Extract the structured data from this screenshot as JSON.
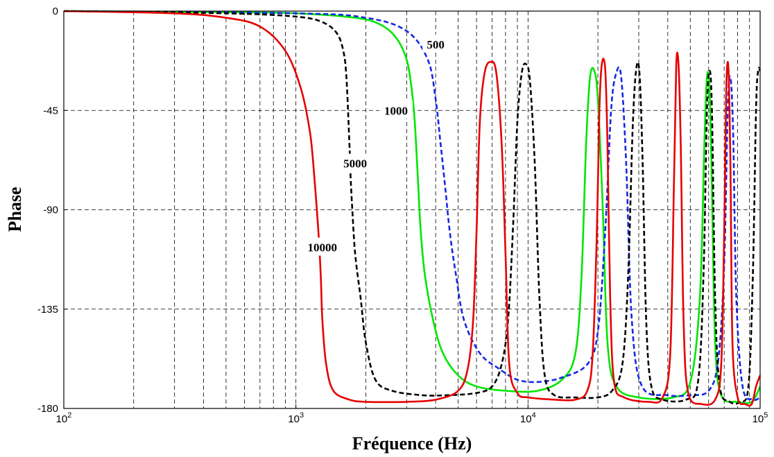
{
  "chart_data": {
    "type": "line",
    "xlabel": "Fréquence (Hz)",
    "ylabel": "Phase",
    "xscale": "log",
    "xlim": [
      100,
      100000
    ],
    "ylim": [
      -180,
      0
    ],
    "grid": true,
    "x_ticks": [
      {
        "value": 100,
        "base": "10",
        "exp": "2"
      },
      {
        "value": 1000,
        "base": "10",
        "exp": "3"
      },
      {
        "value": 10000,
        "base": "10",
        "exp": "4"
      },
      {
        "value": 100000,
        "base": "10",
        "exp": "5"
      }
    ],
    "y_ticks": [
      {
        "value": 0,
        "label": "0"
      },
      {
        "value": -45,
        "label": "-45"
      },
      {
        "value": -90,
        "label": "-90"
      },
      {
        "value": -135,
        "label": "-135"
      },
      {
        "value": -180,
        "label": "-180"
      }
    ],
    "series": [
      {
        "name": "10000",
        "color": "#e60000",
        "dash": "solid",
        "label": "10000",
        "label_at": [
          1300,
          -107
        ],
        "points": [
          [
            100,
            0
          ],
          [
            300,
            -1
          ],
          [
            500,
            -3
          ],
          [
            700,
            -7
          ],
          [
            900,
            -18
          ],
          [
            1050,
            -35
          ],
          [
            1150,
            -55
          ],
          [
            1200,
            -75
          ],
          [
            1250,
            -100
          ],
          [
            1280,
            -120
          ],
          [
            1300,
            -140
          ],
          [
            1350,
            -160
          ],
          [
            1450,
            -172
          ],
          [
            1700,
            -176
          ],
          [
            2000,
            -177
          ],
          [
            3000,
            -177
          ],
          [
            4000,
            -176
          ],
          [
            5000,
            -172
          ],
          [
            5500,
            -162
          ],
          [
            5800,
            -140
          ],
          [
            6000,
            -100
          ],
          [
            6200,
            -50
          ],
          [
            6500,
            -28
          ],
          [
            6900,
            -23
          ],
          [
            7300,
            -28
          ],
          [
            7700,
            -60
          ],
          [
            8000,
            -110
          ],
          [
            8300,
            -160
          ],
          [
            9000,
            -173
          ],
          [
            10000,
            -175
          ],
          [
            13000,
            -176
          ],
          [
            16000,
            -176
          ],
          [
            18000,
            -172
          ],
          [
            19000,
            -155
          ],
          [
            19800,
            -100
          ],
          [
            20300,
            -45
          ],
          [
            20800,
            -24
          ],
          [
            21500,
            -26
          ],
          [
            22000,
            -60
          ],
          [
            22600,
            -130
          ],
          [
            23500,
            -168
          ],
          [
            26000,
            -175
          ],
          [
            33000,
            -177
          ],
          [
            38000,
            -175
          ],
          [
            41000,
            -155
          ],
          [
            42500,
            -80
          ],
          [
            43500,
            -25
          ],
          [
            44500,
            -24
          ],
          [
            45500,
            -60
          ],
          [
            46800,
            -140
          ],
          [
            49000,
            -173
          ],
          [
            56000,
            -178
          ],
          [
            64000,
            -176
          ],
          [
            68000,
            -160
          ],
          [
            70000,
            -100
          ],
          [
            71500,
            -35
          ],
          [
            73000,
            -26
          ],
          [
            74500,
            -70
          ],
          [
            76000,
            -150
          ],
          [
            80000,
            -175
          ],
          [
            86000,
            -178
          ],
          [
            92000,
            -178
          ],
          [
            96000,
            -170
          ],
          [
            100000,
            -165
          ]
        ]
      },
      {
        "name": "5000",
        "color": "#000000",
        "dash": "dashed",
        "label": "5000",
        "label_at": [
          1800,
          -69
        ],
        "points": [
          [
            100,
            0
          ],
          [
            500,
            -1
          ],
          [
            1000,
            -2.5
          ],
          [
            1300,
            -5
          ],
          [
            1500,
            -10
          ],
          [
            1600,
            -18
          ],
          [
            1650,
            -30
          ],
          [
            1700,
            -60
          ],
          [
            1720,
            -75
          ],
          [
            1750,
            -90
          ],
          [
            1800,
            -110
          ],
          [
            1900,
            -130
          ],
          [
            2000,
            -150
          ],
          [
            2200,
            -167
          ],
          [
            2600,
            -172
          ],
          [
            3500,
            -174
          ],
          [
            4500,
            -174
          ],
          [
            6000,
            -173
          ],
          [
            7000,
            -170
          ],
          [
            7700,
            -160
          ],
          [
            8200,
            -140
          ],
          [
            8600,
            -100
          ],
          [
            9000,
            -50
          ],
          [
            9400,
            -28
          ],
          [
            9800,
            -24
          ],
          [
            10200,
            -32
          ],
          [
            10700,
            -70
          ],
          [
            11200,
            -130
          ],
          [
            11800,
            -165
          ],
          [
            13000,
            -174
          ],
          [
            16000,
            -175
          ],
          [
            20000,
            -175
          ],
          [
            23000,
            -172
          ],
          [
            25500,
            -160
          ],
          [
            27000,
            -120
          ],
          [
            28200,
            -55
          ],
          [
            29200,
            -27
          ],
          [
            30200,
            -28
          ],
          [
            31200,
            -70
          ],
          [
            32300,
            -140
          ],
          [
            34000,
            -170
          ],
          [
            38000,
            -176
          ],
          [
            48000,
            -176
          ],
          [
            54000,
            -168
          ],
          [
            57000,
            -120
          ],
          [
            59000,
            -45
          ],
          [
            60500,
            -27
          ],
          [
            62000,
            -45
          ],
          [
            64000,
            -130
          ],
          [
            67000,
            -170
          ],
          [
            74000,
            -177
          ],
          [
            82000,
            -177
          ],
          [
            89000,
            -170
          ],
          [
            93000,
            -120
          ],
          [
            96000,
            -45
          ],
          [
            98000,
            -27
          ],
          [
            100000,
            -27
          ]
        ]
      },
      {
        "name": "1000",
        "color": "#00e600",
        "dash": "solid",
        "label": "1000",
        "label_at": [
          2700,
          -45
        ],
        "points": [
          [
            100,
            0
          ],
          [
            500,
            -0.5
          ],
          [
            1000,
            -1
          ],
          [
            1800,
            -3
          ],
          [
            2300,
            -6
          ],
          [
            2700,
            -12
          ],
          [
            3000,
            -22
          ],
          [
            3150,
            -35
          ],
          [
            3250,
            -50
          ],
          [
            3350,
            -75
          ],
          [
            3450,
            -100
          ],
          [
            3600,
            -120
          ],
          [
            3900,
            -140
          ],
          [
            4300,
            -155
          ],
          [
            5000,
            -165
          ],
          [
            6000,
            -170
          ],
          [
            8000,
            -172
          ],
          [
            11000,
            -172
          ],
          [
            14000,
            -167
          ],
          [
            16000,
            -155
          ],
          [
            17000,
            -120
          ],
          [
            17800,
            -60
          ],
          [
            18500,
            -30
          ],
          [
            19300,
            -27
          ],
          [
            20000,
            -40
          ],
          [
            21000,
            -90
          ],
          [
            22000,
            -150
          ],
          [
            24000,
            -170
          ],
          [
            30000,
            -175
          ],
          [
            42000,
            -175
          ],
          [
            50000,
            -168
          ],
          [
            55000,
            -130
          ],
          [
            57500,
            -60
          ],
          [
            59000,
            -30
          ],
          [
            60500,
            -35
          ],
          [
            62000,
            -80
          ],
          [
            64000,
            -150
          ],
          [
            68000,
            -174
          ],
          [
            80000,
            -177
          ],
          [
            92000,
            -177
          ],
          [
            100000,
            -170
          ]
        ]
      },
      {
        "name": "500",
        "color": "#1428e6",
        "dash": "dashed",
        "label": "500",
        "label_at": [
          4000,
          -15
        ],
        "points": [
          [
            100,
            0
          ],
          [
            1000,
            -1
          ],
          [
            2000,
            -3
          ],
          [
            3000,
            -9
          ],
          [
            3700,
            -22
          ],
          [
            4000,
            -40
          ],
          [
            4200,
            -60
          ],
          [
            4400,
            -80
          ],
          [
            4600,
            -100
          ],
          [
            4900,
            -120
          ],
          [
            5300,
            -140
          ],
          [
            6200,
            -155
          ],
          [
            7500,
            -162
          ],
          [
            9000,
            -167
          ],
          [
            11000,
            -168
          ],
          [
            14000,
            -166
          ],
          [
            18000,
            -160
          ],
          [
            20000,
            -145
          ],
          [
            21500,
            -100
          ],
          [
            22800,
            -45
          ],
          [
            24000,
            -28
          ],
          [
            25200,
            -30
          ],
          [
            26500,
            -70
          ],
          [
            28000,
            -140
          ],
          [
            31000,
            -170
          ],
          [
            40000,
            -174
          ],
          [
            50000,
            -174
          ],
          [
            60000,
            -172
          ],
          [
            66000,
            -158
          ],
          [
            70000,
            -115
          ],
          [
            72500,
            -45
          ],
          [
            74500,
            -30
          ],
          [
            76500,
            -55
          ],
          [
            79000,
            -130
          ],
          [
            84000,
            -170
          ],
          [
            93000,
            -176
          ],
          [
            100000,
            -175
          ]
        ]
      }
    ]
  }
}
